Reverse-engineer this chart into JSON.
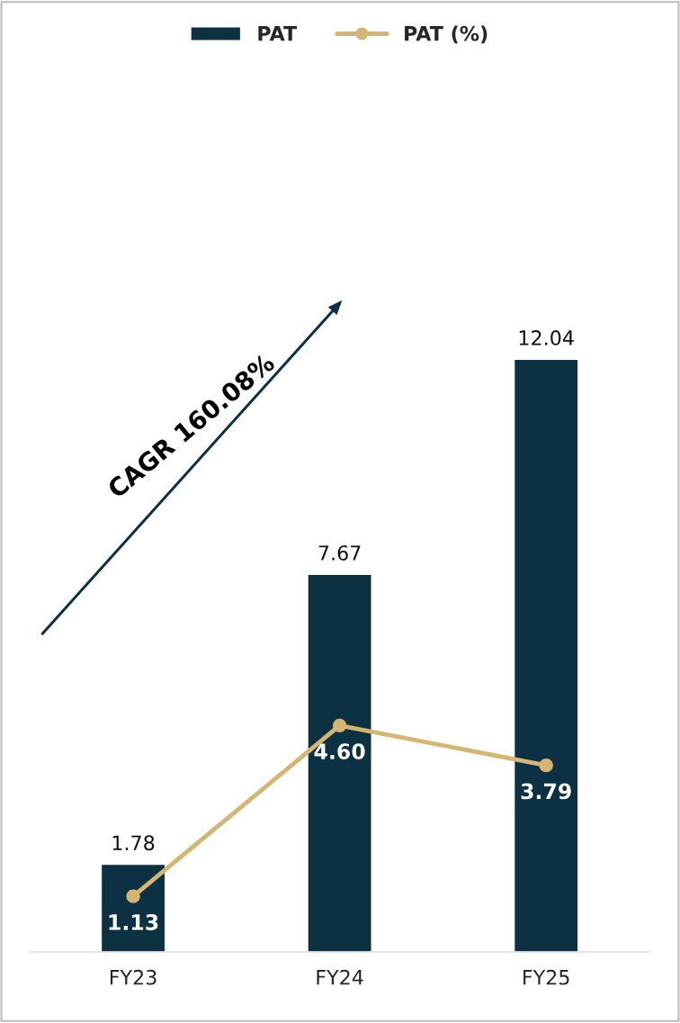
{
  "chart_data": {
    "type": "bar",
    "categories": [
      "FY23",
      "FY24",
      "FY25"
    ],
    "series": [
      {
        "name": "PAT",
        "color": "#0b3142",
        "values": [
          1.78,
          7.67,
          12.04
        ],
        "value_labels": [
          "1.78",
          "7.67",
          "12.04"
        ]
      },
      {
        "name": "PAT (%)",
        "type": "line",
        "color": "#d4b572",
        "values": [
          1.13,
          4.6,
          3.79
        ],
        "value_labels": [
          "1.13",
          "4.60",
          "3.79"
        ]
      }
    ],
    "tick_labels": "x",
    "legend": "top",
    "marker": "circle",
    "annotations": [
      "CAGR 160.08%"
    ]
  }
}
